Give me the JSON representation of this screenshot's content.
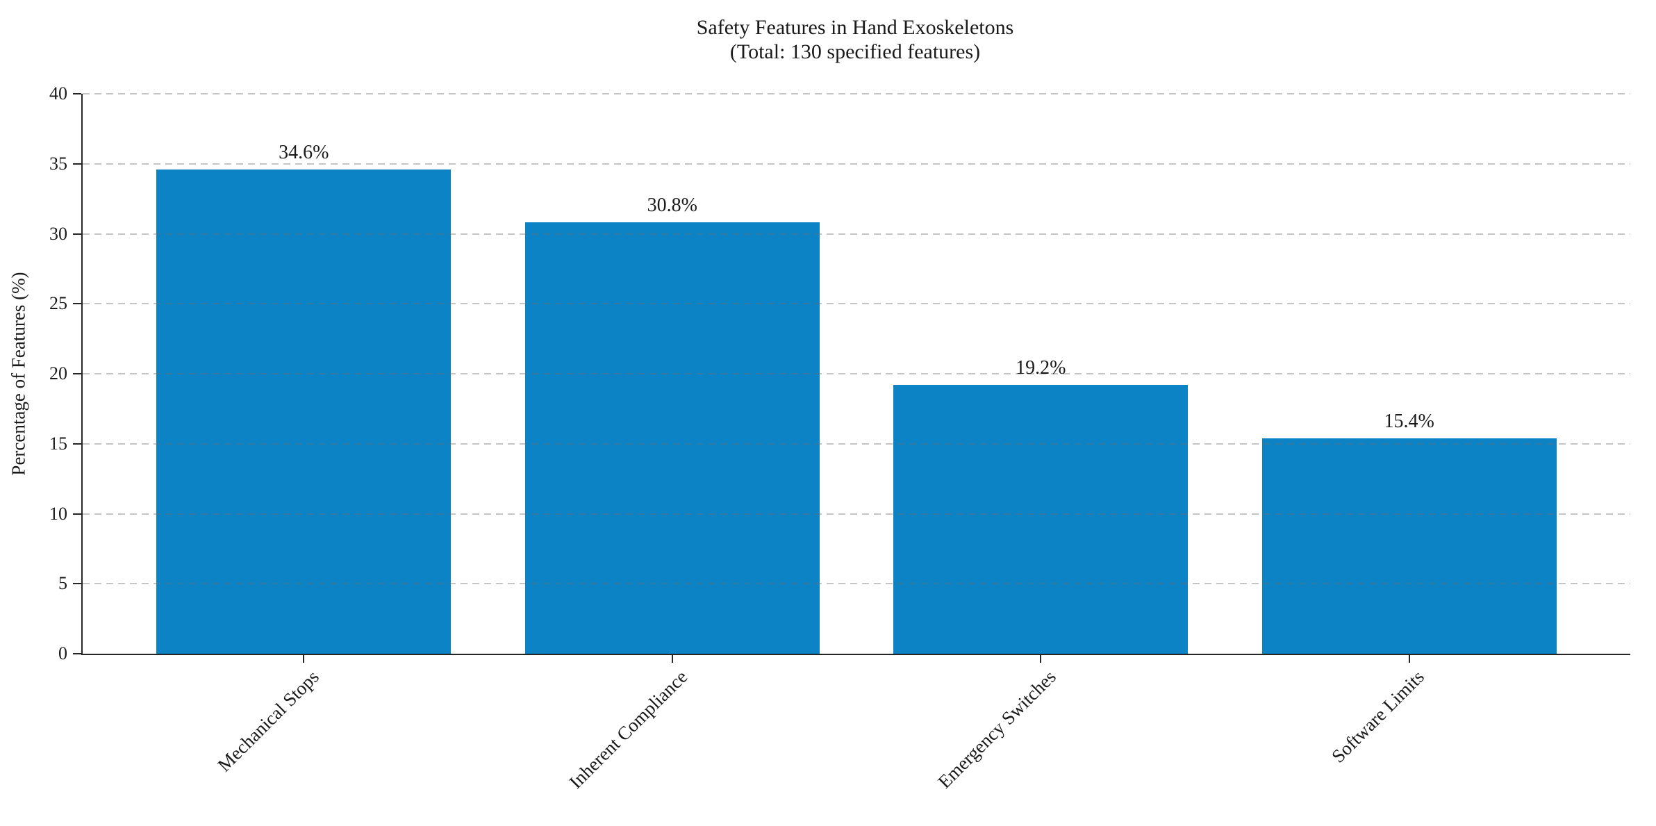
{
  "figure": {
    "title": "Safety Features in Hand Exoskeletons",
    "subtitle": "(Total: 130 specified features)",
    "ylabel": "Percentage of Features (%)"
  },
  "chart_data": {
    "type": "bar",
    "title": "Safety Features in Hand Exoskeletons",
    "subtitle": "(Total: 130 specified features)",
    "categories": [
      "Mechanical Stops",
      "Inherent Compliance",
      "Emergency Switches",
      "Software Limits"
    ],
    "values": [
      34.6,
      30.8,
      19.2,
      15.4
    ],
    "value_labels": [
      "34.6%",
      "30.8%",
      "19.2%",
      "15.4%"
    ],
    "xlabel": "",
    "ylabel": "Percentage of Features (%)",
    "ylim": [
      0,
      40
    ],
    "yticks": [
      0,
      5,
      10,
      15,
      20,
      25,
      30,
      35,
      40
    ],
    "bar_color": "#0b83c5",
    "axis_color": "#262626",
    "text_color": "#1a1a1a",
    "grid": "horizontal-dashed-over-bars",
    "legend": "none",
    "tick_label_rotation": 45
  }
}
